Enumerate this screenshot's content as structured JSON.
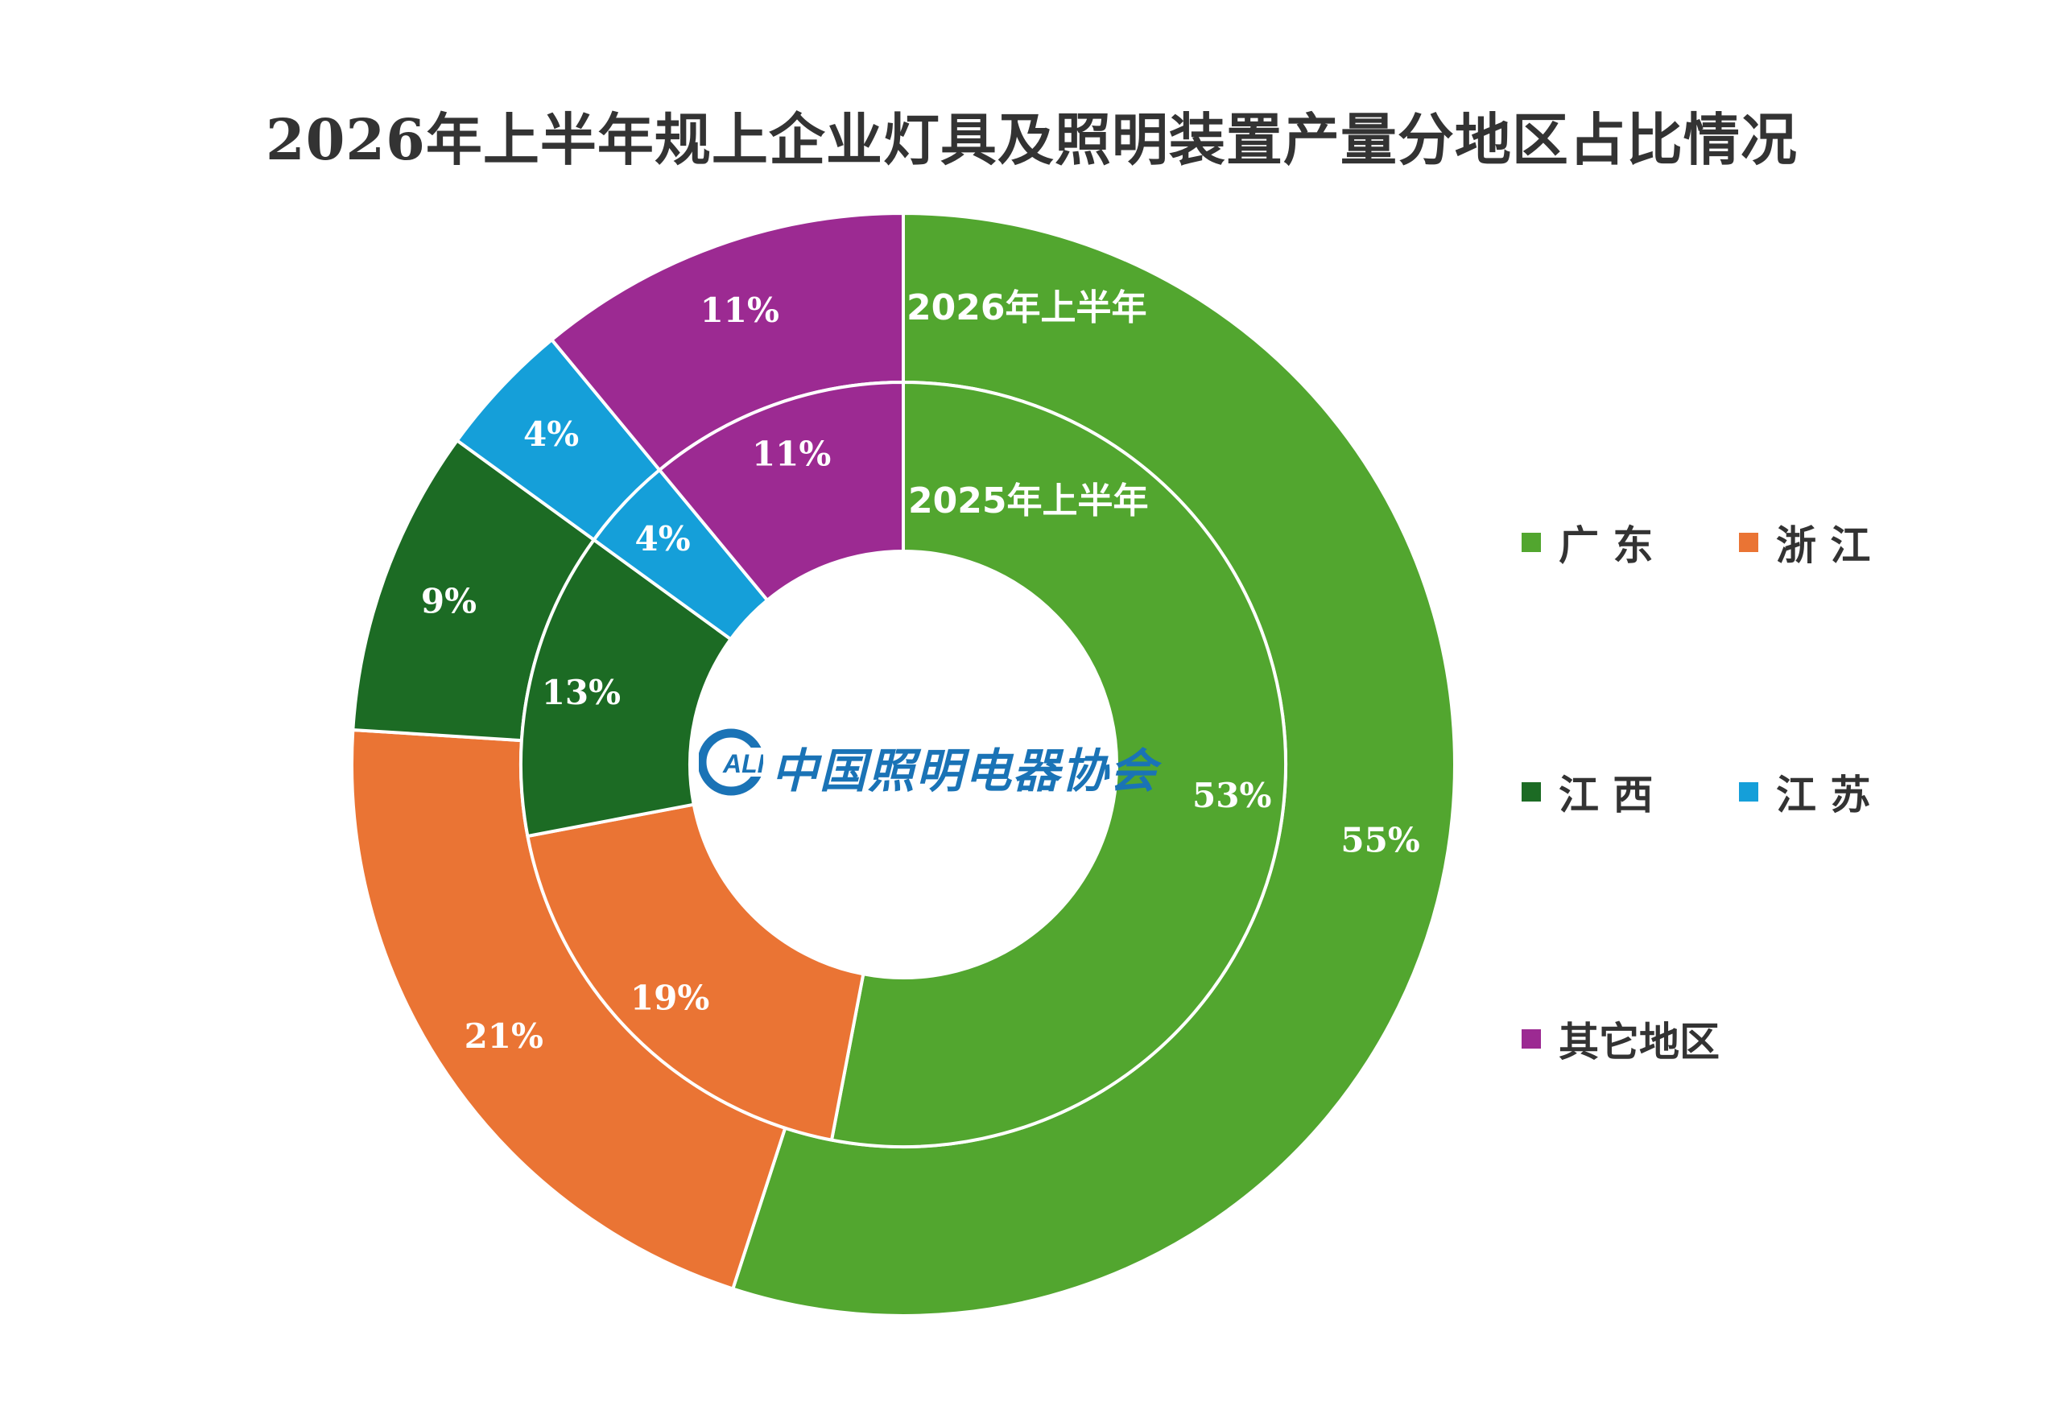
{
  "chart_data": {
    "type": "pie",
    "title": "2026年上半年规上企业灯具及照明装置产量分地区占比情况",
    "categories": [
      "广 东",
      "浙 江",
      "江 西",
      "江 苏",
      "其它地区"
    ],
    "series": [
      {
        "name": "2025年上半年",
        "ring": "inner",
        "values": [
          53,
          19,
          13,
          4,
          11
        ],
        "labels": [
          "53%",
          "19%",
          "13%",
          "4%",
          "11%"
        ]
      },
      {
        "name": "2026年上半年",
        "ring": "outer",
        "values": [
          55,
          21,
          9,
          4,
          11
        ],
        "labels": [
          "55%",
          "21%",
          "9%",
          "4%",
          "11%"
        ]
      }
    ],
    "colors": [
      "#52a62f",
      "#ea7434",
      "#1c6b24",
      "#159fd9",
      "#9c2a92"
    ],
    "legend": "right"
  },
  "logo": {
    "icon": "cali-logo",
    "text": "中国照明电器协会",
    "mark": "ALI",
    "color": "#1a73b6"
  }
}
